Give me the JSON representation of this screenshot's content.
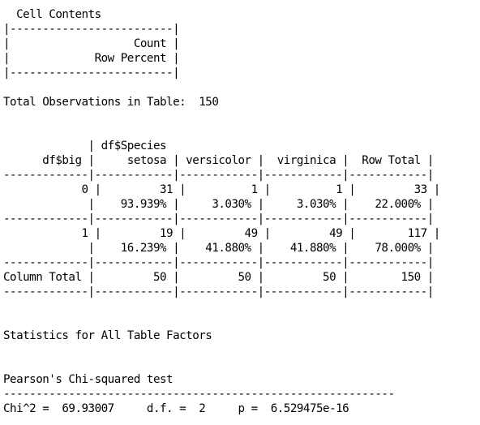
{
  "document": {
    "lines": [
      "  Cell Contents",
      "|-------------------------|",
      "|                   Count |",
      "|             Row Percent |",
      "|-------------------------|",
      "",
      "Total Observations in Table:  150",
      "",
      "",
      "             | df$Species",
      "      df$big |     setosa | versicolor |  virginica |  Row Total |",
      "-------------|------------|------------|------------|------------|",
      "            0 |         31 |          1 |          1 |         33 |",
      "             |    93.939% |     3.030% |     3.030% |    22.000% |",
      "-------------|------------|------------|------------|------------|",
      "            1 |         19 |         49 |         49 |        117 |",
      "             |    16.239% |    41.880% |    41.880% |    78.000% |",
      "-------------|------------|------------|------------|------------|",
      "Column Total |         50 |         50 |         50 |        150 |",
      "-------------|------------|------------|------------|------------|",
      "",
      "",
      "Statistics for All Table Factors",
      "",
      "",
      "Pearson's Chi-squared test",
      "------------------------------------------------------------",
      "Chi^2 =  69.93007     d.f. =  2     p =  6.529475e-16"
    ]
  }
}
